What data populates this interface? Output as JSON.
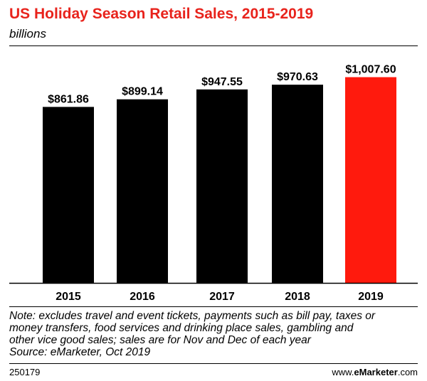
{
  "header": {
    "title": "US Holiday Season Retail Sales, 2015-2019",
    "subtitle": "billions"
  },
  "chart_data": {
    "type": "bar",
    "title": "US Holiday Season Retail Sales, 2015-2019",
    "subtitle": "billions",
    "categories": [
      "2015",
      "2016",
      "2017",
      "2018",
      "2019"
    ],
    "values": [
      861.86,
      899.14,
      947.55,
      970.63,
      1007.6
    ],
    "value_labels": [
      "$861.86",
      "$899.14",
      "$947.55",
      "$970.63",
      "$1,007.60"
    ],
    "colors": [
      "#000000",
      "#000000",
      "#000000",
      "#000000",
      "#ff1a0d"
    ],
    "ylim": [
      0,
      1100
    ],
    "grid": false,
    "legend": "none"
  },
  "notes": {
    "lines": [
      "Note: excludes travel and event tickets, payments such as bill pay, taxes or",
      "money transfers, food services and drinking place sales, gambling and",
      "other vice good sales; sales are for Nov and Dec of each year",
      "Source: eMarketer, Oct 2019"
    ]
  },
  "footer": {
    "id": "250179",
    "brand_prefix": "www.",
    "brand_name": "eMarketer",
    "brand_suffix": ".com"
  }
}
